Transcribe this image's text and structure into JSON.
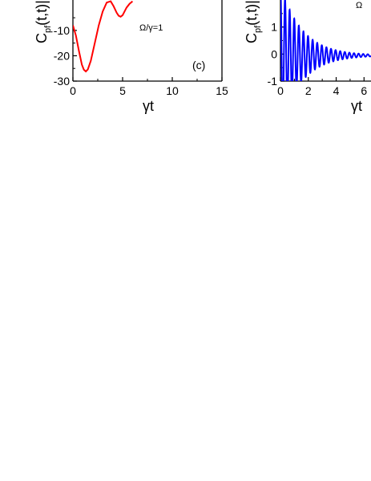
{
  "chart_data": [
    {
      "type": "line",
      "panel_label": "(c)",
      "annotation": "Ω/γ=1",
      "xlabel": "γt",
      "ylabel": "C",
      "ylabel_sub": "pf",
      "ylabel_rest": "(t,t)|",
      "xlim": [
        0,
        15
      ],
      "ylim": [
        -30,
        2
      ],
      "xticks": [
        "0",
        "5",
        "10",
        "15"
      ],
      "yticks": [
        "-10",
        "-20",
        "-30"
      ],
      "series": [
        {
          "color": "#ff0000",
          "x": [
            0.0,
            0.3,
            0.6,
            0.9,
            1.1,
            1.3,
            1.5,
            1.8,
            2.2,
            2.6,
            3.0,
            3.4,
            3.8,
            4.1,
            4.4,
            4.6,
            4.8,
            5.0,
            5.2,
            5.4,
            5.7,
            6.0
          ],
          "y": [
            -8,
            -12,
            -18,
            -23.5,
            -25.5,
            -26.2,
            -25.4,
            -22,
            -15,
            -8,
            -2.5,
            1,
            1.5,
            -0.5,
            -3,
            -4.2,
            -4.6,
            -4,
            -2.5,
            -1,
            0.5,
            1.5
          ]
        }
      ]
    },
    {
      "type": "line",
      "annotation": "Ω",
      "xlabel": "γt",
      "ylabel": "C",
      "ylabel_sub": "pf",
      "ylabel_rest": "(t,t)|",
      "xlim": [
        0,
        6.5
      ],
      "ylim": [
        -1,
        2
      ],
      "xticks": [
        "0",
        "2",
        "4",
        "6"
      ],
      "yticks": [
        "1",
        "0",
        "-1"
      ],
      "series": [
        {
          "color": "#0000ff",
          "function": "damped-oscillation",
          "amplitude": 2.6,
          "period": 0.33,
          "decay": 0.65,
          "baseline": -0.05
        }
      ]
    }
  ]
}
